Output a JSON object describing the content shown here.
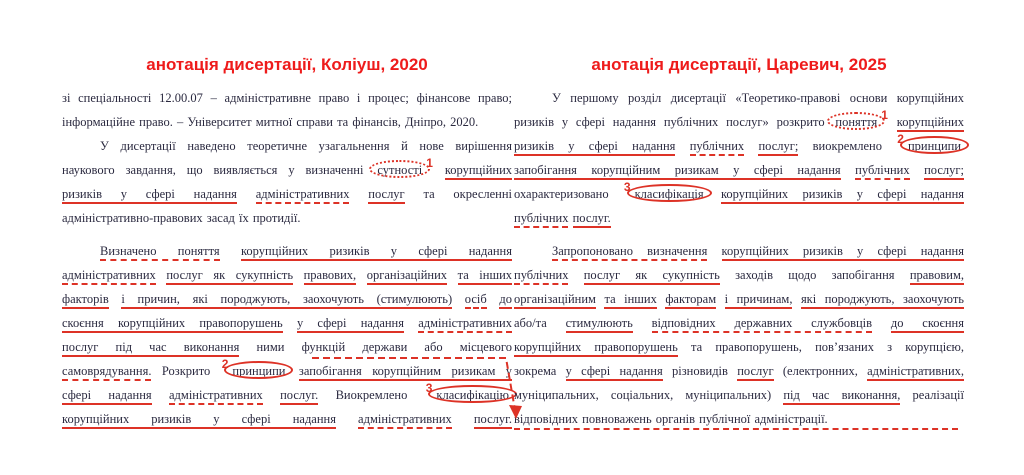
{
  "colors": {
    "heading_red": "#ee1b1b",
    "mark_red": "#dd3226",
    "text": "#2b2a40",
    "background": "#ffffff"
  },
  "left_column": {
    "title": "анотація дисертації, Коліуш, 2020",
    "lines": [
      {
        "segments": [
          {
            "t": "зі спеціальності 12.00.07 – адміністративне право і процес; фінансове право;"
          }
        ]
      },
      {
        "last": true,
        "segments": [
          {
            "t": "інформаційне право. – Університет митної справи та фінансів, Дніпро, 2020."
          }
        ]
      },
      {
        "indent": true,
        "segments": [
          {
            "t": "У дисертації наведено теоретичне узагальнення й нове вирішення"
          }
        ]
      },
      {
        "segments": [
          {
            "t": "наукового завдання, що виявляється у визначенні"
          },
          {
            "t": "сутності",
            "s": "oval-dotted",
            "n": "1",
            "np": "after"
          },
          {
            "t": "корупційних",
            "s": "solid"
          }
        ]
      },
      {
        "segments": [
          {
            "t": "ризиків у сфері надання",
            "s": "solid"
          },
          {
            "t": "адміністративних",
            "s": "dashed"
          },
          {
            "t": "послуг",
            "s": "solid"
          },
          {
            "t": "та окресленні"
          }
        ]
      },
      {
        "last": true,
        "segments": [
          {
            "t": "адміністративно-правових засад їх протидії."
          }
        ]
      },
      {
        "indent": true,
        "gap": true,
        "segments": [
          {
            "t": "Визначено поняття",
            "s": "dashed"
          },
          {
            "t": "корупційних ризиків у сфері надання",
            "s": "solid"
          }
        ]
      },
      {
        "segments": [
          {
            "t": "адміністративних",
            "s": "dashed"
          },
          {
            "t": "послуг як сукупність",
            "s": "solid"
          },
          {
            "t": "правових,",
            "s": "solid"
          },
          {
            "t": "організаційних",
            "s": "solid"
          },
          {
            "t": "та інших",
            "s": "solid"
          }
        ]
      },
      {
        "segments": [
          {
            "t": "факторів",
            "s": "solid"
          },
          {
            "t": "і причин, які породжують, заохочують (стимулюють)",
            "s": "solid"
          },
          {
            "t": "осіб",
            "s": "dashed"
          },
          {
            "t": "до",
            "s": "solid"
          }
        ]
      },
      {
        "segments": [
          {
            "t": "скоєння корупційних правопорушень",
            "s": "solid"
          },
          {
            "t": "у сфері надання",
            "s": "solid"
          },
          {
            "t": "адміністративних",
            "s": "dashed"
          }
        ]
      },
      {
        "segments": [
          {
            "t": "послуг під час виконання",
            "s": "solid"
          },
          {
            "t": "ними функцій держави або місцевого"
          }
        ]
      },
      {
        "segments": [
          {
            "t": "самоврядування.",
            "s": "dashed"
          },
          {
            "t": "Розкрито"
          },
          {
            "t": "принципи",
            "s": "oval",
            "n": "2",
            "np": "before"
          },
          {
            "t": "запобігання корупційним ризикам у",
            "s": "solid"
          }
        ]
      },
      {
        "segments": [
          {
            "t": "сфері надання",
            "s": "solid"
          },
          {
            "t": "адміністративних",
            "s": "dashed"
          },
          {
            "t": "послуг.",
            "s": "solid"
          },
          {
            "t": "Виокремлено"
          },
          {
            "t": "класифікацію",
            "s": "oval",
            "n": "3",
            "np": "before"
          }
        ]
      },
      {
        "segments": [
          {
            "t": "корупційних ризиків у сфері надання",
            "s": "solid"
          },
          {
            "t": "адміністративних",
            "s": "dashed"
          },
          {
            "t": "послуг.",
            "s": "solid"
          }
        ]
      }
    ]
  },
  "right_column": {
    "title": "анотація дисертації, Царевич, 2025",
    "lines": [
      {
        "indent": true,
        "segments": [
          {
            "t": "У першому розділ дисертації «Теоретико-правові основи корупційних"
          }
        ]
      },
      {
        "segments": [
          {
            "t": "ризиків у сфері надання публічних послуг» розкрито"
          },
          {
            "t": "поняття",
            "s": "oval-dotted",
            "n": "1",
            "np": "after"
          },
          {
            "t": "корупційних",
            "s": "solid"
          }
        ]
      },
      {
        "segments": [
          {
            "t": "ризиків у сфері надання",
            "s": "solid"
          },
          {
            "t": "публічних",
            "s": "dashed"
          },
          {
            "t": "послуг;",
            "s": "solid"
          },
          {
            "t": "виокремлено"
          },
          {
            "t": "принципи",
            "s": "oval",
            "n": "2",
            "np": "before"
          }
        ]
      },
      {
        "segments": [
          {
            "t": "запобігання корупційним ризикам у сфері надання",
            "s": "solid"
          },
          {
            "t": "публічних",
            "s": "dashed"
          },
          {
            "t": "послуг;",
            "s": "solid"
          }
        ]
      },
      {
        "segments": [
          {
            "t": "охарактеризовано"
          },
          {
            "t": "класифікація",
            "s": "oval",
            "n": "3",
            "np": "before"
          },
          {
            "t": "корупційних ризиків у сфері надання",
            "s": "solid"
          }
        ]
      },
      {
        "last": true,
        "segments": [
          {
            "t": "публічних",
            "s": "dashed"
          },
          {
            "t": "послуг.",
            "s": "solid"
          }
        ]
      },
      {
        "indent": true,
        "gap": true,
        "segments": [
          {
            "t": "Запропоновано визначення",
            "s": "dashed"
          },
          {
            "t": "корупційних ризиків у сфері надання",
            "s": "solid"
          }
        ]
      },
      {
        "segments": [
          {
            "t": "публічних",
            "s": "dashed"
          },
          {
            "t": "послуг як сукупність",
            "s": "solid"
          },
          {
            "t": "заходів щодо запобігання"
          },
          {
            "t": "правовим,",
            "s": "solid"
          }
        ]
      },
      {
        "segments": [
          {
            "t": "організаційним",
            "s": "solid"
          },
          {
            "t": "та інших",
            "s": "solid"
          },
          {
            "t": "факторам",
            "s": "solid"
          },
          {
            "t": "і причинам,",
            "s": "solid"
          },
          {
            "t": "які породжують, заохочують",
            "s": "solid"
          }
        ]
      },
      {
        "segments": [
          {
            "t": "або/та"
          },
          {
            "t": "стимулюють",
            "s": "solid"
          },
          {
            "t": "відповідних державних службовців",
            "s": "dashed"
          },
          {
            "t": "до скоєння",
            "s": "solid"
          }
        ]
      },
      {
        "segments": [
          {
            "t": "корупційних правопорушень",
            "s": "solid"
          },
          {
            "t": "та правопорушень, пов’язаних з корупцією,"
          }
        ]
      },
      {
        "segments": [
          {
            "t": "зокрема"
          },
          {
            "t": "у сфері надання",
            "s": "solid"
          },
          {
            "t": "різновидів"
          },
          {
            "t": "послуг",
            "s": "solid"
          },
          {
            "t": "(електронних,"
          },
          {
            "t": "адміністративних,",
            "s": "solid"
          }
        ]
      },
      {
        "segments": [
          {
            "t": "муніципальних, соціальних, муніципальних)"
          },
          {
            "t": "під час виконання,",
            "s": "solid"
          },
          {
            "t": "реалізації"
          }
        ]
      },
      {
        "last": true,
        "underline_full": "dashed",
        "segments": [
          {
            "t": "відповідних повноважень органів публічної адміністрації."
          }
        ]
      }
    ]
  },
  "cross_reference_arrow": {
    "style": "dashed-red",
    "from": "left column: запобігання корупційним ризикам",
    "to": "right column: відповідних повноважень органів публічної адміністрації."
  }
}
